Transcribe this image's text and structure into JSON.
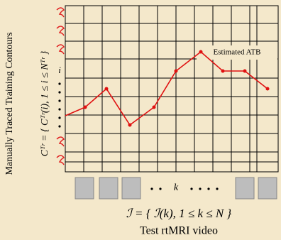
{
  "figure": {
    "y_label": "Manually Traced Training Contours",
    "training_set": "Cᵀʳ = { Cᵀʳ(i), 1 ≤ i ≤ Nᵀʳ }",
    "training_index": "i",
    "estimate_label": "Estimated ATB",
    "test_index": "k",
    "test_set": "ℐ = { ℐ(k), 1 ≤ k ≤ N }",
    "x_label": "Test rtMRI video"
  }
}
